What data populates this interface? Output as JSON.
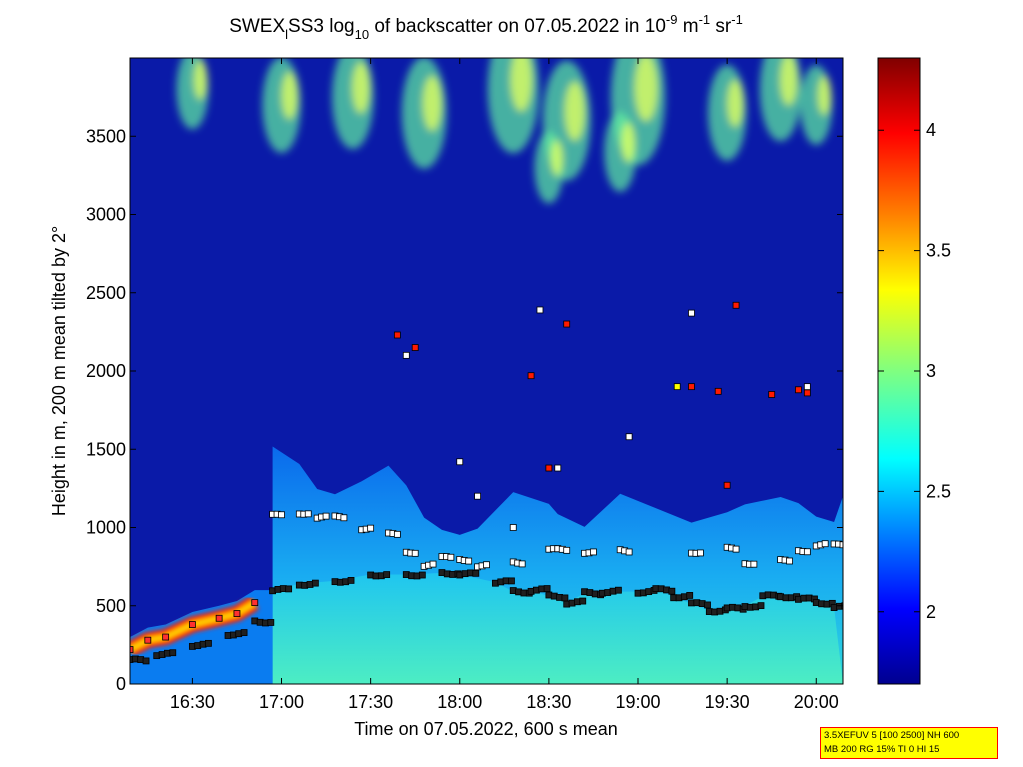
{
  "colors": {
    "background_dark": "#0a1aa8",
    "colormap": [
      "#000080",
      "#0000ff",
      "#0080ff",
      "#00ffff",
      "#80ff80",
      "#ffff00",
      "#ff8000",
      "#ff0000",
      "#800000"
    ]
  },
  "chart_data": {
    "type": "heatmap",
    "title_parts": {
      "pre": "SWEX",
      "sub1": "l",
      "mid": "SS3 log",
      "sub2": "10",
      "post1": " of backscatter on 07.05.2022 in 10",
      "sup1": "-9",
      "post2": " m",
      "sup2": "-1",
      "post3": " sr",
      "sup3": "-1"
    },
    "xlabel": "Time on 07.05.2022, 600 s mean",
    "ylabel": "Height in m, 200 m mean tilted by 2°",
    "xlim_hours": [
      16.15,
      20.15
    ],
    "ylim": [
      0,
      4000
    ],
    "x_ticks": [
      {
        "h": 16.5,
        "label": "16:30"
      },
      {
        "h": 17.0,
        "label": "17:00"
      },
      {
        "h": 17.5,
        "label": "17:30"
      },
      {
        "h": 18.0,
        "label": "18:00"
      },
      {
        "h": 18.5,
        "label": "18:30"
      },
      {
        "h": 19.0,
        "label": "19:00"
      },
      {
        "h": 19.5,
        "label": "19:30"
      },
      {
        "h": 20.0,
        "label": "20:00"
      }
    ],
    "y_ticks": [
      0,
      500,
      1000,
      1500,
      2000,
      2500,
      3000,
      3500
    ],
    "colorbar": {
      "min": 1.7,
      "max": 4.3,
      "ticks": [
        "2",
        "2.5",
        "3",
        "3.5",
        "4"
      ],
      "tick_values": [
        2,
        2.5,
        3,
        3.5,
        4
      ]
    },
    "boundary_layer_top_dark": [
      [
        16.15,
        150
      ],
      [
        16.3,
        190
      ],
      [
        16.5,
        250
      ],
      [
        16.7,
        320
      ],
      [
        16.85,
        400
      ],
      [
        16.95,
        600
      ],
      [
        17.1,
        640
      ],
      [
        17.3,
        660
      ],
      [
        17.5,
        700
      ],
      [
        17.7,
        700
      ],
      [
        17.9,
        710
      ],
      [
        18.0,
        700
      ],
      [
        18.2,
        650
      ],
      [
        18.3,
        590
      ],
      [
        18.4,
        600
      ],
      [
        18.5,
        560
      ],
      [
        18.6,
        520
      ],
      [
        18.7,
        580
      ],
      [
        18.8,
        590
      ],
      [
        19.0,
        590
      ],
      [
        19.1,
        600
      ],
      [
        19.2,
        560
      ],
      [
        19.3,
        510
      ],
      [
        19.4,
        470
      ],
      [
        19.5,
        480
      ],
      [
        19.6,
        500
      ],
      [
        19.7,
        560
      ],
      [
        19.8,
        560
      ],
      [
        19.9,
        540
      ],
      [
        20.0,
        520
      ],
      [
        20.1,
        490
      ]
    ],
    "upper_layer_white": [
      [
        16.95,
        1070
      ],
      [
        17.1,
        1100
      ],
      [
        17.2,
        1060
      ],
      [
        17.3,
        1060
      ],
      [
        17.45,
        1000
      ],
      [
        17.6,
        950
      ],
      [
        17.7,
        850
      ],
      [
        17.8,
        760
      ],
      [
        17.9,
        800
      ],
      [
        18.0,
        800
      ],
      [
        18.1,
        760
      ],
      [
        18.3,
        780
      ],
      [
        18.5,
        850
      ],
      [
        18.55,
        850
      ],
      [
        18.7,
        850
      ],
      [
        18.9,
        850
      ],
      [
        19.3,
        850
      ],
      [
        19.5,
        860
      ],
      [
        19.6,
        780
      ],
      [
        19.8,
        780
      ],
      [
        19.9,
        860
      ],
      [
        20.0,
        890
      ],
      [
        20.1,
        880
      ]
    ],
    "lowest_layer_red": [
      [
        16.15,
        220
      ],
      [
        16.25,
        280
      ],
      [
        16.35,
        300
      ],
      [
        16.5,
        380
      ],
      [
        16.65,
        420
      ],
      [
        16.75,
        450
      ],
      [
        16.85,
        520
      ]
    ],
    "cloud_points_white": [
      [
        17.7,
        2100
      ],
      [
        18.0,
        1420
      ],
      [
        18.1,
        1200
      ],
      [
        18.3,
        1000
      ],
      [
        18.45,
        2390
      ],
      [
        18.55,
        1380
      ],
      [
        18.95,
        1580
      ],
      [
        19.3,
        2370
      ],
      [
        19.95,
        1900
      ]
    ],
    "cloud_points_red": [
      [
        17.65,
        2230
      ],
      [
        17.75,
        2150
      ],
      [
        18.4,
        1970
      ],
      [
        18.5,
        1380
      ],
      [
        18.6,
        2300
      ],
      [
        19.3,
        1900
      ],
      [
        19.45,
        1870
      ],
      [
        19.5,
        1270
      ],
      [
        19.55,
        2420
      ],
      [
        19.75,
        1850
      ],
      [
        19.9,
        1880
      ],
      [
        19.95,
        1860
      ]
    ],
    "cloud_points_yellow": [
      [
        19.22,
        1900
      ]
    ]
  },
  "info_box": {
    "line1": "3.5XEFUV 5 [100 2500] NH 600",
    "line2": "MB 200 RG 15% TI 0 HI 15"
  }
}
